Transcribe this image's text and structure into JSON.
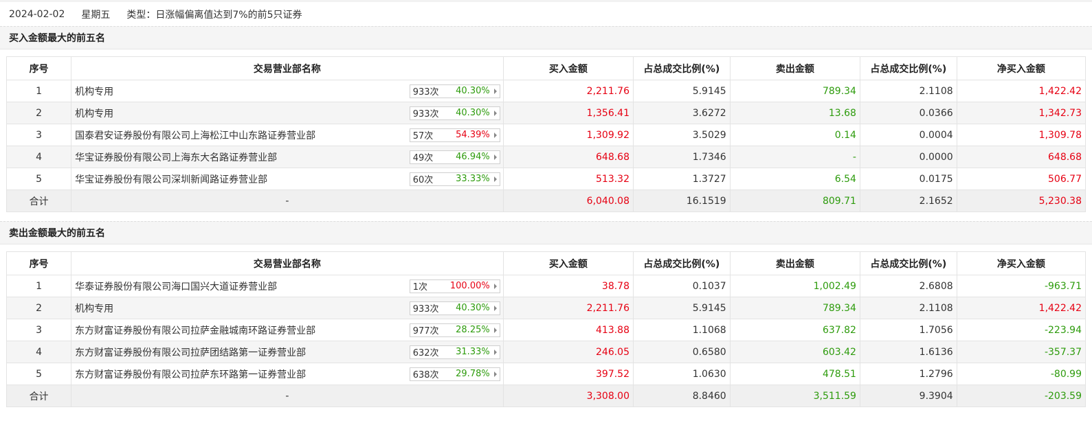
{
  "header": {
    "date": "2024-02-02",
    "weekday": "星期五",
    "type": "类型：日涨幅偏离值达到7%的前5只证券"
  },
  "columns": [
    "序号",
    "交易营业部名称",
    "买入金额",
    "占总成交比例(%)",
    "卖出金额",
    "占总成交比例(%)",
    "净买入金额"
  ],
  "colors": {
    "up": "#e60012",
    "down": "#2d9b0c"
  },
  "buy_section": {
    "title": "买入金额最大的前五名",
    "rows": [
      {
        "idx": "1",
        "name": "机构专用",
        "count": "933次",
        "pct": "40.30%",
        "pct_color": "green",
        "buy": "2,211.76",
        "buy_ratio": "5.9145",
        "sell": "789.34",
        "sell_ratio": "2.1108",
        "net": "1,422.42",
        "net_color": "red"
      },
      {
        "idx": "2",
        "name": "机构专用",
        "count": "933次",
        "pct": "40.30%",
        "pct_color": "green",
        "buy": "1,356.41",
        "buy_ratio": "3.6272",
        "sell": "13.68",
        "sell_ratio": "0.0366",
        "net": "1,342.73",
        "net_color": "red"
      },
      {
        "idx": "3",
        "name": "国泰君安证券股份有限公司上海松江中山东路证券营业部",
        "count": "57次",
        "pct": "54.39%",
        "pct_color": "red",
        "buy": "1,309.92",
        "buy_ratio": "3.5029",
        "sell": "0.14",
        "sell_ratio": "0.0004",
        "net": "1,309.78",
        "net_color": "red"
      },
      {
        "idx": "4",
        "name": "华宝证券股份有限公司上海东大名路证券营业部",
        "count": "49次",
        "pct": "46.94%",
        "pct_color": "green",
        "buy": "648.68",
        "buy_ratio": "1.7346",
        "sell": "-",
        "sell_ratio": "0.0000",
        "net": "648.68",
        "net_color": "red"
      },
      {
        "idx": "5",
        "name": "华宝证券股份有限公司深圳新闻路证券营业部",
        "count": "60次",
        "pct": "33.33%",
        "pct_color": "green",
        "buy": "513.32",
        "buy_ratio": "1.3727",
        "sell": "6.54",
        "sell_ratio": "0.0175",
        "net": "506.77",
        "net_color": "red"
      }
    ],
    "total": {
      "label": "合计",
      "name": "-",
      "buy": "6,040.08",
      "buy_ratio": "16.1519",
      "sell": "809.71",
      "sell_ratio": "2.1652",
      "net": "5,230.38",
      "net_color": "red"
    }
  },
  "sell_section": {
    "title": "卖出金额最大的前五名",
    "rows": [
      {
        "idx": "1",
        "name": "华泰证券股份有限公司海口国兴大道证券营业部",
        "count": "1次",
        "pct": "100.00%",
        "pct_color": "red",
        "buy": "38.78",
        "buy_ratio": "0.1037",
        "sell": "1,002.49",
        "sell_ratio": "2.6808",
        "net": "-963.71",
        "net_color": "green"
      },
      {
        "idx": "2",
        "name": "机构专用",
        "count": "933次",
        "pct": "40.30%",
        "pct_color": "green",
        "buy": "2,211.76",
        "buy_ratio": "5.9145",
        "sell": "789.34",
        "sell_ratio": "2.1108",
        "net": "1,422.42",
        "net_color": "red"
      },
      {
        "idx": "3",
        "name": "东方财富证券股份有限公司拉萨金融城南环路证券营业部",
        "count": "977次",
        "pct": "28.25%",
        "pct_color": "green",
        "buy": "413.88",
        "buy_ratio": "1.1068",
        "sell": "637.82",
        "sell_ratio": "1.7056",
        "net": "-223.94",
        "net_color": "green"
      },
      {
        "idx": "4",
        "name": "东方财富证券股份有限公司拉萨团结路第一证券营业部",
        "count": "632次",
        "pct": "31.33%",
        "pct_color": "green",
        "buy": "246.05",
        "buy_ratio": "0.6580",
        "sell": "603.42",
        "sell_ratio": "1.6136",
        "net": "-357.37",
        "net_color": "green"
      },
      {
        "idx": "5",
        "name": "东方财富证券股份有限公司拉萨东环路第一证券营业部",
        "count": "638次",
        "pct": "29.78%",
        "pct_color": "green",
        "buy": "397.52",
        "buy_ratio": "1.0630",
        "sell": "478.51",
        "sell_ratio": "1.2796",
        "net": "-80.99",
        "net_color": "green"
      }
    ],
    "total": {
      "label": "合计",
      "name": "-",
      "buy": "3,308.00",
      "buy_ratio": "8.8460",
      "sell": "3,511.59",
      "sell_ratio": "9.3904",
      "net": "-203.59",
      "net_color": "green"
    }
  }
}
